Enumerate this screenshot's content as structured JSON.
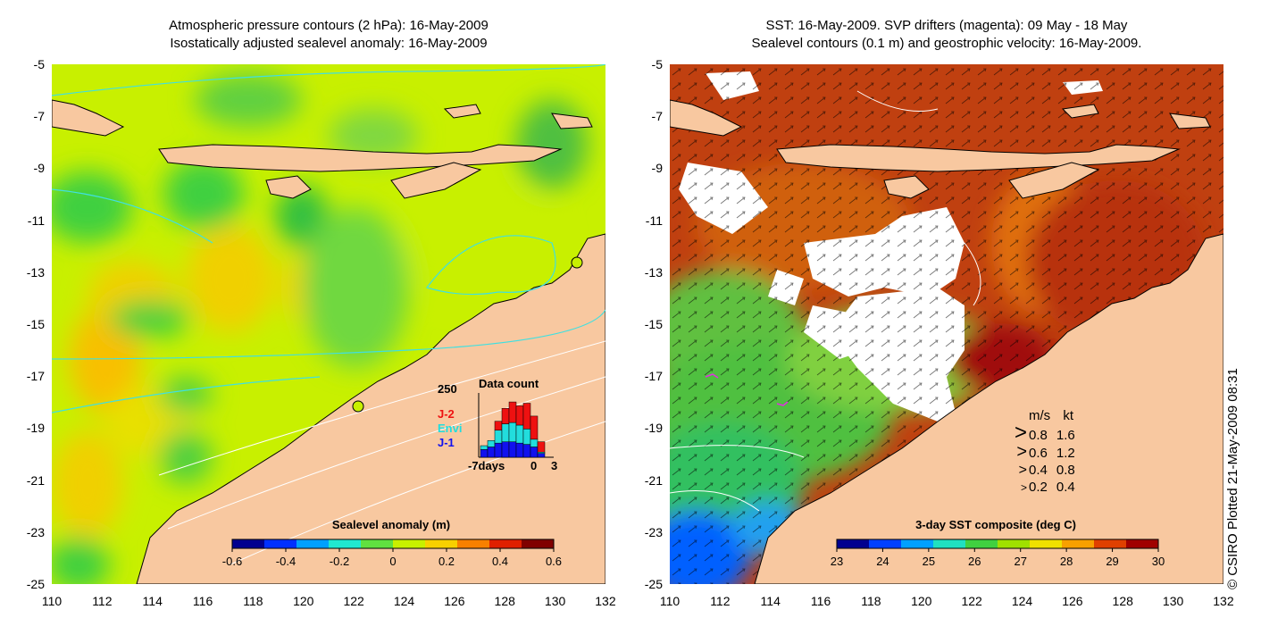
{
  "left_panel": {
    "title_line1": "Atmospheric pressure contours (2 hPa): 16-May-2009",
    "title_line2": "Isostatically adjusted sealevel anomaly: 16-May-2009",
    "colorbar_label": "Sealevel anomaly (m)",
    "colorbar_ticks": [
      "-0.6",
      "-0.4",
      "-0.2",
      "0",
      "0.2",
      "0.4",
      "0.6"
    ],
    "colorbar_colors": [
      "#00008f",
      "#0030ff",
      "#00a0ff",
      "#20e8d0",
      "#60e040",
      "#c8f000",
      "#f8d000",
      "#f88000",
      "#e02000",
      "#800000"
    ],
    "inset": {
      "title": "Data count",
      "ymax_label": "250",
      "legend": [
        {
          "label": "J-2",
          "color": "#ee1111"
        },
        {
          "label": "Envi",
          "color": "#22dddd"
        },
        {
          "label": "J-1",
          "color": "#1111ee"
        }
      ],
      "xlabel_left": "-7days",
      "xlabel_mid": "0",
      "xlabel_right": "3",
      "bars": [
        {
          "j1": 30,
          "envi": 15,
          "j2": 0
        },
        {
          "j1": 40,
          "envi": 25,
          "j2": 0
        },
        {
          "j1": 55,
          "envi": 50,
          "j2": 35
        },
        {
          "j1": 60,
          "envi": 70,
          "j2": 60
        },
        {
          "j1": 60,
          "envi": 75,
          "j2": 80
        },
        {
          "j1": 55,
          "envi": 70,
          "j2": 75
        },
        {
          "j1": 50,
          "envi": 60,
          "j2": 100
        },
        {
          "j1": 40,
          "envi": 30,
          "j2": 90
        },
        {
          "j1": 15,
          "envi": 5,
          "j2": 40
        },
        {
          "j1": 0,
          "envi": 0,
          "j2": 0
        }
      ]
    }
  },
  "right_panel": {
    "title_line1": "SST: 16-May-2009. SVP drifters (magenta): 09 May - 18 May",
    "title_line2": "Sealevel contours (0.1 m) and geostrophic velocity: 16-May-2009.",
    "colorbar_label": "3-day SST composite (deg C)",
    "colorbar_ticks": [
      "23",
      "24",
      "25",
      "26",
      "27",
      "28",
      "29",
      "30"
    ],
    "colorbar_colors": [
      "#00008f",
      "#0040ff",
      "#00a0ff",
      "#20e0c0",
      "#40d040",
      "#a0e000",
      "#f0e000",
      "#f8a000",
      "#e04000",
      "#a00000"
    ],
    "velocity_header": {
      "ms": "m/s",
      "kt": "kt"
    },
    "velocity_rows": [
      {
        "ms": "0.8",
        "kt": "1.6"
      },
      {
        "ms": "0.6",
        "kt": "1.2"
      },
      {
        "ms": "0.4",
        "kt": "0.8"
      },
      {
        "ms": "0.2",
        "kt": "0.4"
      }
    ]
  },
  "axes": {
    "x_ticks": [
      "110",
      "112",
      "114",
      "116",
      "118",
      "120",
      "122",
      "124",
      "126",
      "128",
      "130",
      "132"
    ],
    "y_ticks": [
      "-5",
      "-7",
      "-9",
      "-11",
      "-13",
      "-15",
      "-17",
      "-19",
      "-21",
      "-23",
      "-25"
    ]
  },
  "credit": "© CSIRO Plotted 21-May-2009 08:31",
  "colors": {
    "land": "#f8c8a0",
    "sea_left": "#c8f000"
  }
}
